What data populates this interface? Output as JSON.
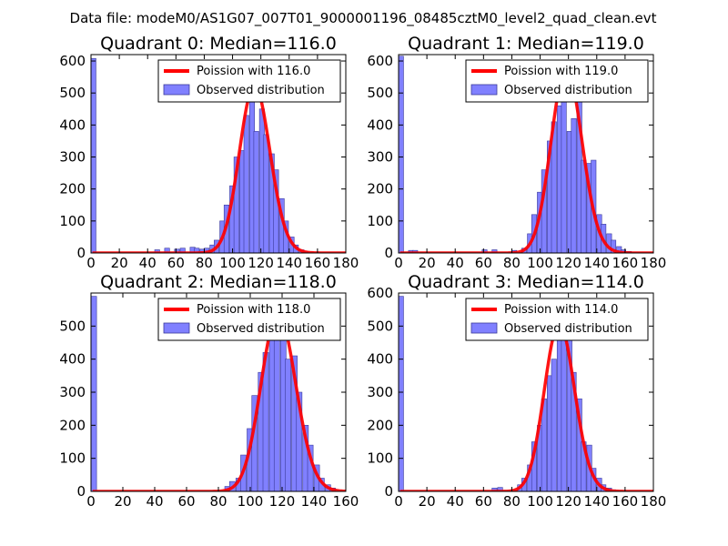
{
  "suptitle": "Data file: modeM0/AS1G07_007T01_9000001196_08485cztM0_level2_quad_clean.evt",
  "chart_data": [
    {
      "type": "bar",
      "title": "Quadrant 0: Median=116.0",
      "median": 116.0,
      "xlim": [
        0,
        180
      ],
      "ylim": [
        0,
        620
      ],
      "xticks": [
        0,
        20,
        40,
        60,
        80,
        100,
        120,
        140,
        160,
        180
      ],
      "yticks": [
        0,
        100,
        200,
        300,
        400,
        500,
        600
      ],
      "bin_width": 3.5,
      "bins": [
        [
          0,
          608
        ],
        [
          45,
          10
        ],
        [
          52,
          15
        ],
        [
          59,
          12
        ],
        [
          63,
          15
        ],
        [
          70,
          18
        ],
        [
          73,
          15
        ],
        [
          77,
          12
        ],
        [
          80,
          15
        ],
        [
          84,
          25
        ],
        [
          87,
          40
        ],
        [
          91,
          100
        ],
        [
          94,
          150
        ],
        [
          98,
          210
        ],
        [
          101,
          300
        ],
        [
          105,
          320
        ],
        [
          108,
          430
        ],
        [
          112,
          500
        ],
        [
          115,
          380
        ],
        [
          119,
          450
        ],
        [
          122,
          370
        ],
        [
          126,
          310
        ],
        [
          129,
          260
        ],
        [
          133,
          170
        ],
        [
          136,
          100
        ],
        [
          140,
          50
        ],
        [
          143,
          25
        ],
        [
          147,
          10
        ],
        [
          150,
          5
        ]
      ],
      "legend": {
        "position": "upper right",
        "line_label": "Poission with 116.0",
        "bar_label": "Observed distribution"
      }
    },
    {
      "type": "bar",
      "title": "Quadrant 1: Median=119.0",
      "median": 119.0,
      "xlim": [
        0,
        180
      ],
      "ylim": [
        0,
        620
      ],
      "xticks": [
        0,
        20,
        40,
        60,
        80,
        100,
        120,
        140,
        160,
        180
      ],
      "yticks": [
        0,
        100,
        200,
        300,
        400,
        500,
        600
      ],
      "bin_width": 3.5,
      "bins": [
        [
          0,
          615
        ],
        [
          7,
          8
        ],
        [
          10,
          8
        ],
        [
          59,
          10
        ],
        [
          66,
          10
        ],
        [
          80,
          8
        ],
        [
          87,
          15
        ],
        [
          91,
          60
        ],
        [
          94,
          120
        ],
        [
          98,
          190
        ],
        [
          101,
          260
        ],
        [
          105,
          350
        ],
        [
          108,
          410
        ],
        [
          112,
          460
        ],
        [
          115,
          490
        ],
        [
          119,
          380
        ],
        [
          122,
          420
        ],
        [
          126,
          480
        ],
        [
          129,
          290
        ],
        [
          133,
          280
        ],
        [
          136,
          290
        ],
        [
          140,
          120
        ],
        [
          143,
          90
        ],
        [
          147,
          60
        ],
        [
          150,
          40
        ],
        [
          154,
          20
        ],
        [
          157,
          10
        ],
        [
          161,
          5
        ]
      ],
      "legend": {
        "position": "upper right",
        "line_label": "Poission with 119.0",
        "bar_label": "Observed distribution"
      }
    },
    {
      "type": "bar",
      "title": "Quadrant 2: Median=118.0",
      "median": 118.0,
      "xlim": [
        0,
        160
      ],
      "ylim": [
        0,
        600
      ],
      "xticks": [
        0,
        20,
        40,
        60,
        80,
        100,
        120,
        140,
        160
      ],
      "yticks": [
        0,
        100,
        200,
        300,
        400,
        500
      ],
      "bin_width": 3.5,
      "bins": [
        [
          0,
          590
        ],
        [
          84,
          15
        ],
        [
          87,
          30
        ],
        [
          91,
          40
        ],
        [
          94,
          110
        ],
        [
          98,
          190
        ],
        [
          101,
          290
        ],
        [
          105,
          360
        ],
        [
          108,
          420
        ],
        [
          112,
          480
        ],
        [
          115,
          460
        ],
        [
          119,
          520
        ],
        [
          122,
          400
        ],
        [
          126,
          410
        ],
        [
          129,
          300
        ],
        [
          133,
          200
        ],
        [
          136,
          140
        ],
        [
          140,
          80
        ],
        [
          143,
          40
        ],
        [
          147,
          20
        ],
        [
          150,
          10
        ]
      ],
      "legend": {
        "position": "upper right",
        "line_label": "Poission with 118.0",
        "bar_label": "Observed distribution"
      }
    },
    {
      "type": "bar",
      "title": "Quadrant 3: Median=114.0",
      "median": 114.0,
      "xlim": [
        0,
        180
      ],
      "ylim": [
        0,
        600
      ],
      "xticks": [
        0,
        20,
        40,
        60,
        80,
        100,
        120,
        140,
        160,
        180
      ],
      "yticks": [
        0,
        100,
        200,
        300,
        400,
        500,
        600
      ],
      "bin_width": 3.5,
      "bins": [
        [
          0,
          590
        ],
        [
          66,
          10
        ],
        [
          70,
          12
        ],
        [
          84,
          20
        ],
        [
          87,
          40
        ],
        [
          91,
          80
        ],
        [
          94,
          150
        ],
        [
          98,
          200
        ],
        [
          101,
          280
        ],
        [
          105,
          350
        ],
        [
          108,
          400
        ],
        [
          112,
          480
        ],
        [
          115,
          540
        ],
        [
          119,
          500
        ],
        [
          122,
          360
        ],
        [
          126,
          280
        ],
        [
          129,
          150
        ],
        [
          133,
          140
        ],
        [
          136,
          70
        ],
        [
          140,
          40
        ],
        [
          143,
          20
        ],
        [
          147,
          10
        ],
        [
          150,
          5
        ]
      ],
      "legend": {
        "position": "upper right",
        "line_label": "Poission with 114.0",
        "bar_label": "Observed distribution"
      }
    }
  ],
  "colors": {
    "bar_fill": "#8080ff",
    "bar_edge": "#3a3a9a",
    "poisson_line": "#ff0000",
    "axis": "#000000"
  }
}
